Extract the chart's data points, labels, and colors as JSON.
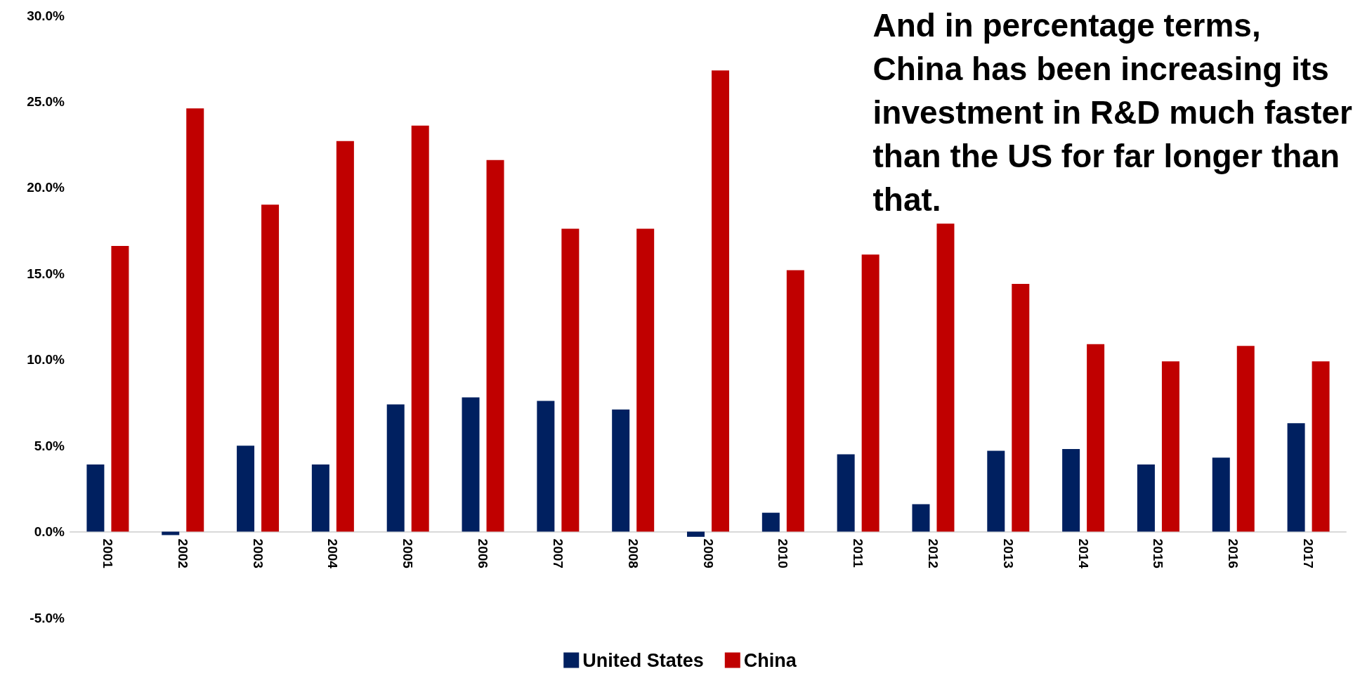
{
  "chart_data": {
    "type": "bar",
    "title": "And in percentage terms,\nChina has been increasing its\ninvestment in R&D much faster\nthan the US for far longer than\nthat.",
    "categories": [
      "2001",
      "2002",
      "2003",
      "2004",
      "2005",
      "2006",
      "2007",
      "2008",
      "2009",
      "2010",
      "2011",
      "2012",
      "2013",
      "2014",
      "2015",
      "2016",
      "2017"
    ],
    "series": [
      {
        "name": "United States",
        "color": "#002060",
        "values": [
          3.9,
          -0.2,
          5.0,
          3.9,
          7.4,
          7.8,
          7.6,
          7.1,
          -0.3,
          1.1,
          4.5,
          1.6,
          4.7,
          4.8,
          3.9,
          4.3,
          6.3
        ]
      },
      {
        "name": "China",
        "color": "#c00000",
        "values": [
          16.6,
          24.6,
          19.0,
          22.7,
          23.6,
          21.6,
          17.6,
          17.6,
          26.8,
          15.2,
          16.1,
          17.9,
          14.4,
          10.9,
          9.9,
          10.8,
          9.9
        ]
      }
    ],
    "ylim": [
      -5,
      30
    ],
    "yticks": [
      {
        "value": -5,
        "label": "-5.0%"
      },
      {
        "value": 0,
        "label": "0.0%"
      },
      {
        "value": 5,
        "label": "5.0%"
      },
      {
        "value": 10,
        "label": "10.0%"
      },
      {
        "value": 15,
        "label": "15.0%"
      },
      {
        "value": 20,
        "label": "20.0%"
      },
      {
        "value": 25,
        "label": "25.0%"
      },
      {
        "value": 30,
        "label": "30.0%"
      }
    ],
    "grid": false,
    "legend": "bottom"
  }
}
